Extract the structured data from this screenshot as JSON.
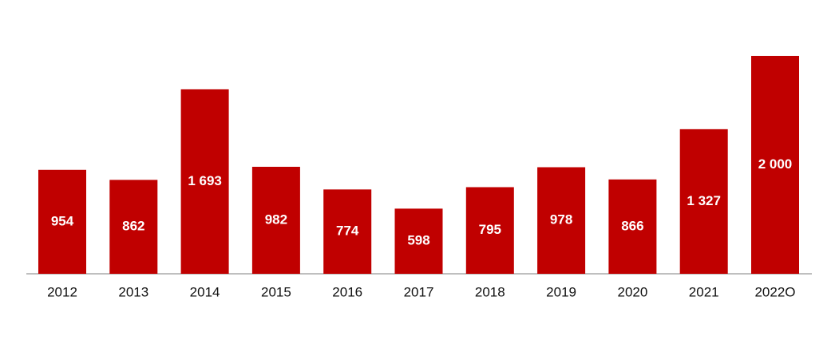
{
  "chart_data": {
    "type": "bar",
    "categories": [
      "2012",
      "2013",
      "2014",
      "2015",
      "2016",
      "2017",
      "2018",
      "2019",
      "2020",
      "2021",
      "2022O"
    ],
    "values": [
      954,
      862,
      1693,
      982,
      774,
      598,
      795,
      978,
      866,
      1327,
      2000
    ],
    "value_labels": [
      "954",
      "862",
      "1 693",
      "982",
      "774",
      "598",
      "795",
      "978",
      "866",
      "1 327",
      "2 000"
    ],
    "color": "#c00000"
  }
}
